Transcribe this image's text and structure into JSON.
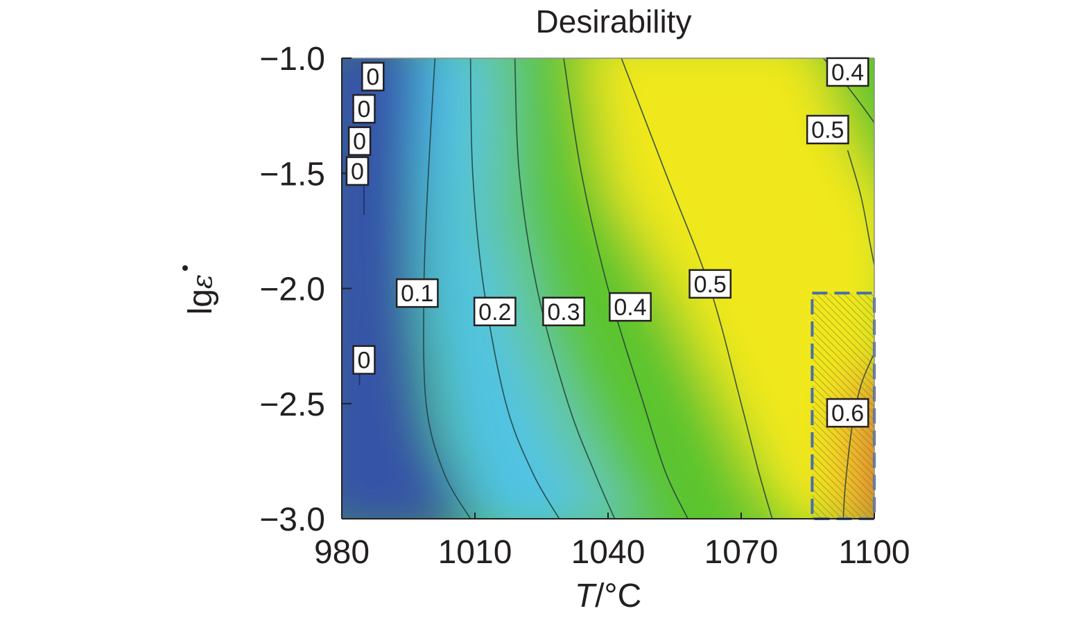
{
  "chart_data": {
    "type": "heatmap",
    "title": "Desirability",
    "xlabel": {
      "italic": "T",
      "unit": "/°C"
    },
    "ylabel": {
      "base": "lg",
      "symbol": "ε"
    },
    "xlim": [
      980,
      1100
    ],
    "ylim": [
      -3.0,
      -1.0
    ],
    "xticks": [
      980,
      1010,
      1040,
      1070,
      1100
    ],
    "xtick_labels": [
      "980",
      "1010",
      "1040",
      "1070",
      "1100"
    ],
    "yticks": [
      -1.0,
      -1.5,
      -2.0,
      -2.5,
      -3.0
    ],
    "ytick_labels": [
      "−1.0",
      "−1.5",
      "−2.0",
      "−2.5",
      "−3.0"
    ],
    "colors": {
      "zero": "#3452a8",
      "low": "#4fc3e6",
      "mid": "#5cc42e",
      "high": "#f0e81e",
      "peak": "#f06a32",
      "region_border": "#4a6fa8"
    },
    "contours": [
      {
        "level": "0.1",
        "points": [
          [
            1001,
            -1.0
          ],
          [
            999.5,
            -1.5
          ],
          [
            998.5,
            -2.0
          ],
          [
            999,
            -2.5
          ],
          [
            1003,
            -2.8
          ],
          [
            1009,
            -3.0
          ]
        ]
      },
      {
        "level": "0.2",
        "points": [
          [
            1009,
            -1.0
          ],
          [
            1009.5,
            -1.5
          ],
          [
            1012,
            -2.0
          ],
          [
            1017,
            -2.5
          ],
          [
            1023,
            -2.8
          ],
          [
            1029,
            -3.0
          ]
        ]
      },
      {
        "level": "0.3",
        "points": [
          [
            1019,
            -1.0
          ],
          [
            1020,
            -1.5
          ],
          [
            1024,
            -2.0
          ],
          [
            1031,
            -2.5
          ],
          [
            1037,
            -2.8
          ],
          [
            1041.5,
            -3.0
          ]
        ]
      },
      {
        "level": "0.4",
        "points": [
          [
            1030,
            -1.0
          ],
          [
            1034,
            -1.5
          ],
          [
            1040,
            -2.0
          ],
          [
            1048,
            -2.5
          ],
          [
            1053,
            -2.8
          ],
          [
            1058,
            -3.0
          ]
        ]
      },
      {
        "level": "0.5",
        "points": [
          [
            1043,
            -1.0
          ],
          [
            1053,
            -1.5
          ],
          [
            1063,
            -2.0
          ],
          [
            1070,
            -2.5
          ],
          [
            1074,
            -2.8
          ],
          [
            1077,
            -3.0
          ]
        ]
      },
      {
        "level": "0.4",
        "points": [
          [
            1088.5,
            -1.0
          ],
          [
            1093,
            -1.1
          ],
          [
            1097,
            -1.2
          ],
          [
            1100,
            -1.28
          ]
        ]
      },
      {
        "level": "0.5",
        "points": [
          [
            1094,
            -1.4
          ],
          [
            1097,
            -1.6
          ],
          [
            1099,
            -1.8
          ],
          [
            1100,
            -1.9
          ]
        ]
      },
      {
        "level": "0.6",
        "points": [
          [
            1100,
            -2.28
          ],
          [
            1097,
            -2.42
          ],
          [
            1095,
            -2.6
          ],
          [
            1093.5,
            -2.85
          ],
          [
            1093,
            -3.0
          ]
        ]
      }
    ],
    "contour_labels": [
      {
        "text": "0",
        "x": 987,
        "y": -1.08
      },
      {
        "text": "0",
        "x": 985,
        "y": -1.22
      },
      {
        "text": "0",
        "x": 984,
        "y": -1.36
      },
      {
        "text": "0",
        "x": 983.5,
        "y": -1.49
      },
      {
        "text": "0",
        "x": 985,
        "y": -2.31
      },
      {
        "text": "0.1",
        "x": 997,
        "y": -2.02
      },
      {
        "text": "0.2",
        "x": 1014.5,
        "y": -2.1
      },
      {
        "text": "0.3",
        "x": 1030,
        "y": -2.1
      },
      {
        "text": "0.4",
        "x": 1045,
        "y": -2.08
      },
      {
        "text": "0.5",
        "x": 1063,
        "y": -1.98
      },
      {
        "text": "0.4",
        "x": 1094,
        "y": -1.06
      },
      {
        "text": "0.5",
        "x": 1089.5,
        "y": -1.31
      },
      {
        "text": "0.6",
        "x": 1094,
        "y": -2.54
      }
    ],
    "highlight_region": {
      "x": [
        1086,
        1100
      ],
      "y": [
        -3.0,
        -2.02
      ],
      "style": "dashed hatched"
    }
  }
}
